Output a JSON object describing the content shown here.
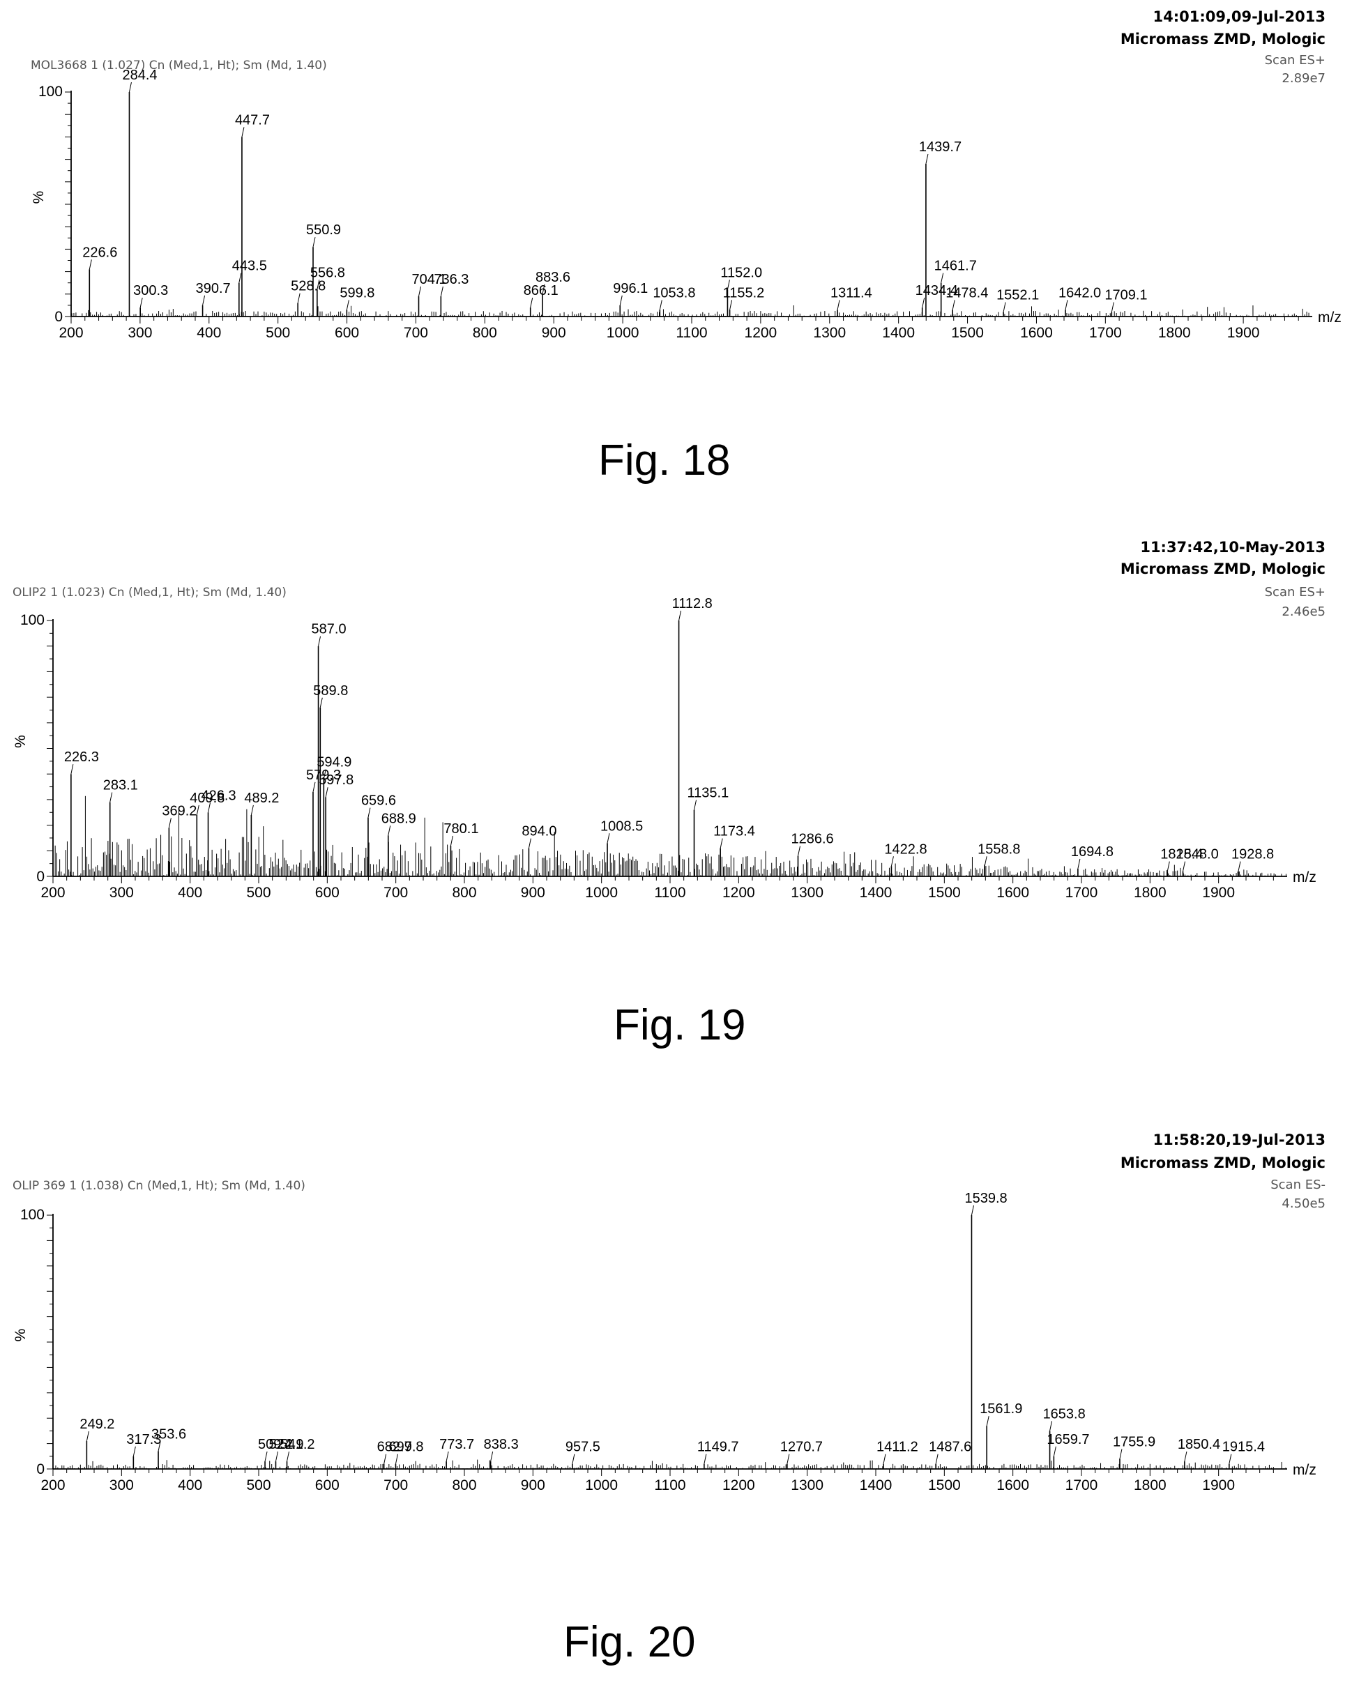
{
  "figures": [
    {
      "header": {
        "time": "14:01:09,09-Jul-2013",
        "instrument": "Micromass ZMD, Mologic",
        "scan": "Scan ES+",
        "intensity": "2.89e7"
      },
      "sample": "MOL3668  1 (1.027) Cn (Med,1, Ht); Sm (Md, 1.40)",
      "caption": "Fig. 18",
      "y_top_label": "100",
      "y_zero_label": "0",
      "y_axis_label": "%",
      "x_unit": "m/z"
    },
    {
      "header": {
        "time": "11:37:42,10-May-2013",
        "instrument": "Micromass ZMD, Mologic",
        "scan": "Scan ES+",
        "intensity": "2.46e5"
      },
      "sample": "OLIP2  1 (1.023) Cn (Med,1, Ht); Sm (Md, 1.40)",
      "caption": "Fig. 19",
      "y_top_label": "100",
      "y_zero_label": "0",
      "y_axis_label": "%",
      "x_unit": "m/z"
    },
    {
      "header": {
        "time": "11:58:20,19-Jul-2013",
        "instrument": "Micromass ZMD, Mologic",
        "scan": "Scan ES-",
        "intensity": "4.50e5"
      },
      "sample": "OLIP 369  1 (1.038) Cn (Med,1, Ht); Sm (Md, 1.40)",
      "caption": "Fig. 20",
      "y_top_label": "100",
      "y_zero_label": "0",
      "y_axis_label": "%",
      "x_unit": "m/z"
    }
  ],
  "chart_data": [
    {
      "type": "bar",
      "xlabel": "m/z",
      "ylabel": "%",
      "xlim": [
        200,
        2000
      ],
      "ylim": [
        0,
        100
      ],
      "x_ticks": [
        200,
        300,
        400,
        500,
        600,
        700,
        800,
        900,
        1000,
        1100,
        1200,
        1300,
        1400,
        1500,
        1600,
        1700,
        1800,
        1900
      ],
      "x_tick_labels": [
        "200",
        "300",
        "400",
        "500",
        "600",
        "700",
        "800",
        "900",
        "1000",
        "1100",
        "1200",
        "1300",
        "1400",
        "1500",
        "1600",
        "1700",
        "1800",
        "1900"
      ],
      "noise_level": 2.5,
      "peaks": [
        {
          "mz": 226.6,
          "label": "226.6",
          "intensity": 21
        },
        {
          "mz": 284.4,
          "label": "284.4",
          "intensity": 100
        },
        {
          "mz": 300.3,
          "label": "300.3",
          "intensity": 4
        },
        {
          "mz": 390.7,
          "label": "390.7",
          "intensity": 5
        },
        {
          "mz": 443.5,
          "label": "443.5",
          "intensity": 15
        },
        {
          "mz": 447.7,
          "label": "447.7",
          "intensity": 80
        },
        {
          "mz": 528.8,
          "label": "528.8",
          "intensity": 6
        },
        {
          "mz": 550.9,
          "label": "550.9",
          "intensity": 31
        },
        {
          "mz": 556.8,
          "label": "556.8",
          "intensity": 12
        },
        {
          "mz": 599.8,
          "label": "599.8",
          "intensity": 3
        },
        {
          "mz": 704.1,
          "label": "704.1",
          "intensity": 9
        },
        {
          "mz": 736.3,
          "label": "736.3",
          "intensity": 9
        },
        {
          "mz": 866.1,
          "label": "866.1",
          "intensity": 4
        },
        {
          "mz": 883.6,
          "label": "883.6",
          "intensity": 10
        },
        {
          "mz": 996.1,
          "label": "996.1",
          "intensity": 5
        },
        {
          "mz": 1053.8,
          "label": "1053.8",
          "intensity": 3
        },
        {
          "mz": 1152.0,
          "label": "1152.0",
          "intensity": 12
        },
        {
          "mz": 1155.2,
          "label": "1155.2",
          "intensity": 3
        },
        {
          "mz": 1311.4,
          "label": "1311.4",
          "intensity": 3
        },
        {
          "mz": 1434.4,
          "label": "1434.4",
          "intensity": 4
        },
        {
          "mz": 1439.7,
          "label": "1439.7",
          "intensity": 68
        },
        {
          "mz": 1461.7,
          "label": "1461.7",
          "intensity": 15
        },
        {
          "mz": 1478.4,
          "label": "1478.4",
          "intensity": 3
        },
        {
          "mz": 1552.1,
          "label": "1552.1",
          "intensity": 2
        },
        {
          "mz": 1642.0,
          "label": "1642.0",
          "intensity": 3
        },
        {
          "mz": 1709.1,
          "label": "1709.1",
          "intensity": 2
        }
      ]
    },
    {
      "type": "bar",
      "xlabel": "m/z",
      "ylabel": "%",
      "xlim": [
        200,
        2000
      ],
      "ylim": [
        0,
        100
      ],
      "x_ticks": [
        200,
        300,
        400,
        500,
        600,
        700,
        800,
        900,
        1000,
        1100,
        1200,
        1300,
        1400,
        1500,
        1600,
        1700,
        1800,
        1900
      ],
      "x_tick_labels": [
        "200",
        "300",
        "400",
        "500",
        "600",
        "700",
        "800",
        "900",
        "1000",
        "1100",
        "1200",
        "1300",
        "1400",
        "1500",
        "1600",
        "1700",
        "1800",
        "1900"
      ],
      "noise_level": 16,
      "peaks": [
        {
          "mz": 226.3,
          "label": "226.3",
          "intensity": 40
        },
        {
          "mz": 283.1,
          "label": "283.1",
          "intensity": 29
        },
        {
          "mz": 369.2,
          "label": "369.2",
          "intensity": 19
        },
        {
          "mz": 409.8,
          "label": "409.8",
          "intensity": 24
        },
        {
          "mz": 426.3,
          "label": "426.3",
          "intensity": 25
        },
        {
          "mz": 489.2,
          "label": "489.2",
          "intensity": 24
        },
        {
          "mz": 579.3,
          "label": "579.3",
          "intensity": 33
        },
        {
          "mz": 587.0,
          "label": "587.0",
          "intensity": 90
        },
        {
          "mz": 589.8,
          "label": "589.8",
          "intensity": 66
        },
        {
          "mz": 594.9,
          "label": "594.9",
          "intensity": 38
        },
        {
          "mz": 597.8,
          "label": "597.8",
          "intensity": 31
        },
        {
          "mz": 659.6,
          "label": "659.6",
          "intensity": 23
        },
        {
          "mz": 688.9,
          "label": "688.9",
          "intensity": 16
        },
        {
          "mz": 780.1,
          "label": "780.1",
          "intensity": 12
        },
        {
          "mz": 894.0,
          "label": "894.0",
          "intensity": 11
        },
        {
          "mz": 1008.5,
          "label": "1008.5",
          "intensity": 13
        },
        {
          "mz": 1112.8,
          "label": "1112.8",
          "intensity": 100
        },
        {
          "mz": 1135.1,
          "label": "1135.1",
          "intensity": 26
        },
        {
          "mz": 1173.4,
          "label": "1173.4",
          "intensity": 11
        },
        {
          "mz": 1286.6,
          "label": "1286.6",
          "intensity": 8
        },
        {
          "mz": 1422.8,
          "label": "1422.8",
          "intensity": 4
        },
        {
          "mz": 1558.8,
          "label": "1558.8",
          "intensity": 4
        },
        {
          "mz": 1694.8,
          "label": "1694.8",
          "intensity": 3
        },
        {
          "mz": 1825.4,
          "label": "1825.4",
          "intensity": 2
        },
        {
          "mz": 1848.0,
          "label": "1848.0",
          "intensity": 2
        },
        {
          "mz": 1928.8,
          "label": "1928.8",
          "intensity": 2
        }
      ]
    },
    {
      "type": "bar",
      "xlabel": "m/z",
      "ylabel": "%",
      "xlim": [
        200,
        2000
      ],
      "ylim": [
        0,
        100
      ],
      "x_ticks": [
        200,
        300,
        400,
        500,
        600,
        700,
        800,
        900,
        1000,
        1100,
        1200,
        1300,
        1400,
        1500,
        1600,
        1700,
        1800,
        1900
      ],
      "x_tick_labels": [
        "200",
        "300",
        "400",
        "500",
        "600",
        "700",
        "800",
        "900",
        "1000",
        "1100",
        "1200",
        "1300",
        "1400",
        "1500",
        "1600",
        "1700",
        "1800",
        "1900"
      ],
      "noise_level": 2,
      "peaks": [
        {
          "mz": 249.2,
          "label": "249.2",
          "intensity": 11
        },
        {
          "mz": 317.3,
          "label": "317.3",
          "intensity": 5
        },
        {
          "mz": 353.6,
          "label": "353.6",
          "intensity": 7
        },
        {
          "mz": 509.2,
          "label": "509.2",
          "intensity": 3
        },
        {
          "mz": 524.9,
          "label": "524.9",
          "intensity": 3
        },
        {
          "mz": 541.2,
          "label": "541.2",
          "intensity": 3
        },
        {
          "mz": 682.7,
          "label": "682.7",
          "intensity": 2
        },
        {
          "mz": 699.8,
          "label": "699.8",
          "intensity": 2
        },
        {
          "mz": 773.7,
          "label": "773.7",
          "intensity": 3
        },
        {
          "mz": 838.3,
          "label": "838.3",
          "intensity": 3
        },
        {
          "mz": 957.5,
          "label": "957.5",
          "intensity": 2
        },
        {
          "mz": 1149.7,
          "label": "1149.7",
          "intensity": 2
        },
        {
          "mz": 1270.7,
          "label": "1270.7",
          "intensity": 2
        },
        {
          "mz": 1411.2,
          "label": "1411.2",
          "intensity": 2
        },
        {
          "mz": 1487.6,
          "label": "1487.6",
          "intensity": 2
        },
        {
          "mz": 1539.8,
          "label": "1539.8",
          "intensity": 100
        },
        {
          "mz": 1561.9,
          "label": "1561.9",
          "intensity": 17
        },
        {
          "mz": 1653.8,
          "label": "1653.8",
          "intensity": 15
        },
        {
          "mz": 1659.7,
          "label": "1659.7",
          "intensity": 5
        },
        {
          "mz": 1755.9,
          "label": "1755.9",
          "intensity": 4
        },
        {
          "mz": 1850.4,
          "label": "1850.4",
          "intensity": 3
        },
        {
          "mz": 1915.4,
          "label": "1915.4",
          "intensity": 2
        }
      ]
    }
  ]
}
